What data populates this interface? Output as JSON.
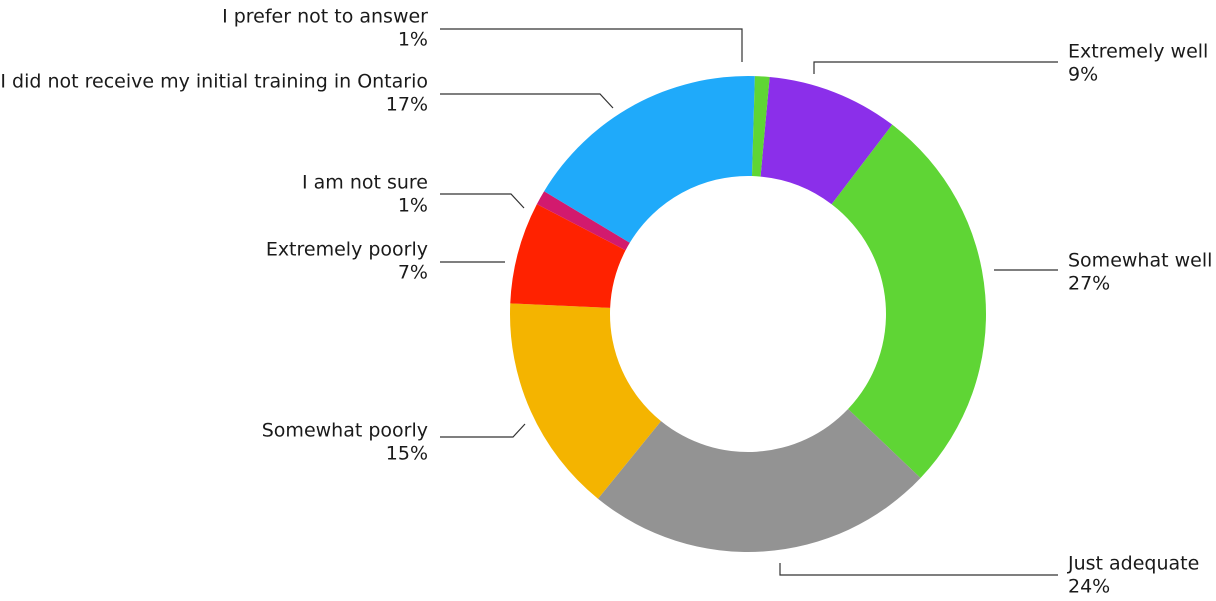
{
  "chart_data": {
    "type": "pie",
    "donut": true,
    "title": "",
    "slices": [
      {
        "label": "Extremely well",
        "value": 9,
        "value_label": "9%",
        "color": "#8B2FEA"
      },
      {
        "label": "Somewhat well",
        "value": 27,
        "value_label": "27%",
        "color": "#5FD535"
      },
      {
        "label": "Just adequate",
        "value": 24,
        "value_label": "24%",
        "color": "#939393"
      },
      {
        "label": "Somewhat poorly",
        "value": 15,
        "value_label": "15%",
        "color": "#F4B400"
      },
      {
        "label": "Extremely poorly",
        "value": 7,
        "value_label": "7%",
        "color": "#FF2200"
      },
      {
        "label": "I am not sure",
        "value": 1,
        "value_label": "1%",
        "color": "#D21A6E"
      },
      {
        "label": "I did not receive my initial training in Ontario",
        "value": 17,
        "value_label": "17%",
        "color": "#1FAAFA"
      },
      {
        "label": "I prefer not to answer",
        "value": 1,
        "value_label": "1%",
        "color": "#5FD535"
      }
    ],
    "legend": "none",
    "labels": "outside with leader lines"
  }
}
